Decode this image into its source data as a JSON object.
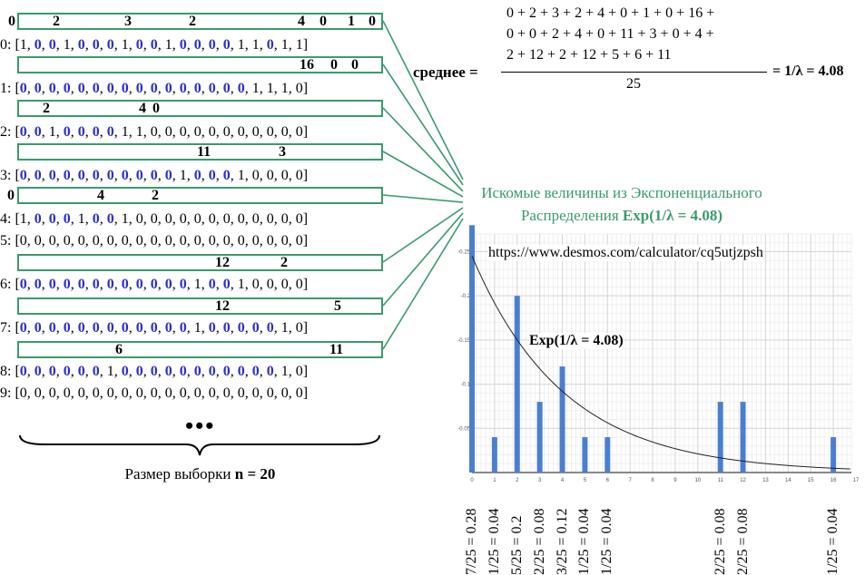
{
  "rows": [
    {
      "label": "0: [",
      "items": [
        [
          "1",
          0
        ],
        [
          "0",
          1
        ],
        [
          "0",
          1
        ],
        [
          "1",
          0
        ],
        [
          "0",
          1
        ],
        [
          "0",
          1
        ],
        [
          "0",
          1
        ],
        [
          "1",
          0
        ],
        [
          "0",
          1
        ],
        [
          "0",
          1
        ],
        [
          "1",
          0
        ],
        [
          "0",
          1
        ],
        [
          "0",
          1
        ],
        [
          "0",
          1
        ],
        [
          "0",
          1
        ],
        [
          "1",
          0
        ],
        [
          "1",
          0
        ],
        [
          "0",
          1
        ],
        [
          "1",
          0
        ],
        [
          "1",
          0
        ]
      ]
    },
    {
      "label": "1: [",
      "items": [
        [
          "0",
          1
        ],
        [
          "0",
          1
        ],
        [
          "0",
          1
        ],
        [
          "0",
          1
        ],
        [
          "0",
          1
        ],
        [
          "0",
          1
        ],
        [
          "0",
          1
        ],
        [
          "0",
          1
        ],
        [
          "0",
          1
        ],
        [
          "0",
          1
        ],
        [
          "0",
          1
        ],
        [
          "0",
          1
        ],
        [
          "0",
          1
        ],
        [
          "0",
          1
        ],
        [
          "0",
          1
        ],
        [
          "0",
          1
        ],
        [
          "1",
          0
        ],
        [
          "1",
          0
        ],
        [
          "1",
          0
        ],
        [
          "0",
          0
        ]
      ]
    },
    {
      "label": "2: [",
      "items": [
        [
          "0",
          1
        ],
        [
          "0",
          1
        ],
        [
          "1",
          0
        ],
        [
          "0",
          1
        ],
        [
          "0",
          1
        ],
        [
          "0",
          1
        ],
        [
          "0",
          1
        ],
        [
          "1",
          0
        ],
        [
          "1",
          0
        ],
        [
          "0",
          0
        ],
        [
          "0",
          0
        ],
        [
          "0",
          0
        ],
        [
          "0",
          0
        ],
        [
          "0",
          0
        ],
        [
          "0",
          0
        ],
        [
          "0",
          0
        ],
        [
          "0",
          0
        ],
        [
          "0",
          0
        ],
        [
          "0",
          0
        ],
        [
          "0",
          0
        ]
      ]
    },
    {
      "label": "3: [",
      "items": [
        [
          "0",
          1
        ],
        [
          "0",
          1
        ],
        [
          "0",
          1
        ],
        [
          "0",
          1
        ],
        [
          "0",
          1
        ],
        [
          "0",
          1
        ],
        [
          "0",
          1
        ],
        [
          "0",
          1
        ],
        [
          "0",
          1
        ],
        [
          "0",
          1
        ],
        [
          "0",
          1
        ],
        [
          "1",
          0
        ],
        [
          "0",
          1
        ],
        [
          "0",
          1
        ],
        [
          "0",
          1
        ],
        [
          "1",
          0
        ],
        [
          "0",
          0
        ],
        [
          "0",
          0
        ],
        [
          "0",
          0
        ],
        [
          "0",
          0
        ]
      ]
    },
    {
      "label": "4: [",
      "items": [
        [
          "1",
          0
        ],
        [
          "0",
          1
        ],
        [
          "0",
          1
        ],
        [
          "0",
          1
        ],
        [
          "1",
          0
        ],
        [
          "0",
          1
        ],
        [
          "0",
          1
        ],
        [
          "1",
          0
        ],
        [
          "0",
          0
        ],
        [
          "0",
          0
        ],
        [
          "0",
          0
        ],
        [
          "0",
          0
        ],
        [
          "0",
          0
        ],
        [
          "0",
          0
        ],
        [
          "0",
          0
        ],
        [
          "0",
          0
        ],
        [
          "0",
          0
        ],
        [
          "0",
          0
        ],
        [
          "0",
          0
        ],
        [
          "0",
          0
        ]
      ]
    },
    {
      "label": "5: [",
      "items": [
        [
          "0",
          0
        ],
        [
          "0",
          0
        ],
        [
          "0",
          0
        ],
        [
          "0",
          0
        ],
        [
          "0",
          0
        ],
        [
          "0",
          0
        ],
        [
          "0",
          0
        ],
        [
          "0",
          0
        ],
        [
          "0",
          0
        ],
        [
          "0",
          0
        ],
        [
          "0",
          0
        ],
        [
          "0",
          0
        ],
        [
          "0",
          0
        ],
        [
          "0",
          0
        ],
        [
          "0",
          0
        ],
        [
          "0",
          0
        ],
        [
          "0",
          0
        ],
        [
          "0",
          0
        ],
        [
          "0",
          0
        ],
        [
          "0",
          0
        ]
      ]
    },
    {
      "label": "6: [",
      "items": [
        [
          "0",
          1
        ],
        [
          "0",
          1
        ],
        [
          "0",
          1
        ],
        [
          "0",
          1
        ],
        [
          "0",
          1
        ],
        [
          "0",
          1
        ],
        [
          "0",
          1
        ],
        [
          "0",
          1
        ],
        [
          "0",
          1
        ],
        [
          "0",
          1
        ],
        [
          "0",
          1
        ],
        [
          "0",
          1
        ],
        [
          "1",
          0
        ],
        [
          "0",
          1
        ],
        [
          "0",
          1
        ],
        [
          "1",
          0
        ],
        [
          "0",
          0
        ],
        [
          "0",
          0
        ],
        [
          "0",
          0
        ],
        [
          "0",
          0
        ]
      ]
    },
    {
      "label": "7: [",
      "items": [
        [
          "0",
          1
        ],
        [
          "0",
          1
        ],
        [
          "0",
          1
        ],
        [
          "0",
          1
        ],
        [
          "0",
          1
        ],
        [
          "0",
          1
        ],
        [
          "0",
          1
        ],
        [
          "0",
          1
        ],
        [
          "0",
          1
        ],
        [
          "0",
          1
        ],
        [
          "0",
          1
        ],
        [
          "0",
          1
        ],
        [
          "1",
          0
        ],
        [
          "0",
          1
        ],
        [
          "0",
          1
        ],
        [
          "0",
          1
        ],
        [
          "0",
          1
        ],
        [
          "0",
          1
        ],
        [
          "1",
          0
        ],
        [
          "0",
          0
        ]
      ]
    },
    {
      "label": "8: [",
      "items": [
        [
          "0",
          1
        ],
        [
          "0",
          1
        ],
        [
          "0",
          1
        ],
        [
          "0",
          1
        ],
        [
          "0",
          1
        ],
        [
          "0",
          1
        ],
        [
          "1",
          0
        ],
        [
          "0",
          1
        ],
        [
          "0",
          1
        ],
        [
          "0",
          1
        ],
        [
          "0",
          1
        ],
        [
          "0",
          1
        ],
        [
          "0",
          1
        ],
        [
          "0",
          1
        ],
        [
          "0",
          1
        ],
        [
          "0",
          1
        ],
        [
          "0",
          1
        ],
        [
          "0",
          1
        ],
        [
          "1",
          0
        ],
        [
          "0",
          0
        ]
      ]
    },
    {
      "label": "9: [",
      "items": [
        [
          "0",
          0
        ],
        [
          "0",
          0
        ],
        [
          "0",
          0
        ],
        [
          "0",
          0
        ],
        [
          "0",
          0
        ],
        [
          "0",
          0
        ],
        [
          "0",
          0
        ],
        [
          "0",
          0
        ],
        [
          "0",
          0
        ],
        [
          "0",
          0
        ],
        [
          "0",
          0
        ],
        [
          "0",
          0
        ],
        [
          "0",
          0
        ],
        [
          "0",
          0
        ],
        [
          "0",
          0
        ],
        [
          "0",
          0
        ],
        [
          "0",
          0
        ],
        [
          "0",
          0
        ],
        [
          "0",
          0
        ],
        [
          "0",
          0
        ]
      ]
    }
  ],
  "gap_boxes": [
    {
      "nums": [
        [
          "0",
          0
        ],
        [
          "2",
          1
        ],
        [
          "3",
          2
        ],
        [
          "2",
          3
        ],
        [
          "4",
          4
        ],
        [
          "0",
          5
        ],
        [
          "1",
          6
        ],
        [
          "0",
          7
        ]
      ]
    },
    {
      "nums": [
        [
          "16",
          8
        ],
        [
          "0",
          9
        ],
        [
          "0",
          10
        ]
      ]
    },
    {
      "nums": [
        [
          "2",
          11
        ],
        [
          "4",
          12
        ],
        [
          "0",
          13
        ]
      ]
    },
    {
      "nums": [
        [
          "11",
          14
        ],
        [
          "3",
          15
        ]
      ]
    },
    {
      "nums": [
        [
          "0",
          16
        ],
        [
          "4",
          17
        ],
        [
          "2",
          18
        ]
      ]
    },
    {
      "nums": [
        [
          "12",
          19
        ],
        [
          "2",
          20
        ]
      ]
    },
    {
      "nums": [
        [
          "12",
          21
        ],
        [
          "5",
          22
        ]
      ]
    },
    {
      "nums": [
        [
          "6",
          23
        ],
        [
          "11",
          24
        ]
      ]
    }
  ],
  "dots": "•••",
  "sample_prefix": "Размер выборки ",
  "sample_bold": "n = 20",
  "formula": {
    "line1": "0 + 2 + 3 + 2 + 4 + 0 + 1 + 0 + 16 +",
    "line2": "0 + 0 + 2 + 4 + 0 + 11 + 3 + 0 + 4 +",
    "line3": "2 + 12 + 2 + 12 + 5 + 6 + 11",
    "denominator": "25",
    "mean_label": "среднее =",
    "result": "= 1/λ = 4.08"
  },
  "green_title": {
    "line1": "Искомые величины из Экспоненциального",
    "line2_prefix": "Распределения ",
    "line2_bold": "Exp(1/λ = 4.08)"
  },
  "url": "https://www.desmos.com/calculator/cq5utjzpsh",
  "curve_label": "Exp(1/λ = 4.08)",
  "colors": {
    "green": "#3b9a6c",
    "blue_bold": "#2a2fc9",
    "bar": "#4a7fd0",
    "grid": "#e2e2e2"
  },
  "chart_data": {
    "type": "bar",
    "x": [
      0,
      1,
      2,
      3,
      4,
      5,
      6,
      11,
      12,
      16
    ],
    "values": [
      0.28,
      0.04,
      0.2,
      0.08,
      0.12,
      0.04,
      0.04,
      0.08,
      0.08,
      0.04
    ],
    "bar_labels": [
      "7/25 = 0.28",
      "1/25 = 0.04",
      "5/25 = 0.2",
      "2/25 = 0.08",
      "3/25 = 0.12",
      "1/25 = 0.04",
      "1/25 = 0.04",
      "2/25 = 0.08",
      "2/25 = 0.08",
      "1/25 = 0.04"
    ],
    "x_ticks": [
      "0",
      "1",
      "2",
      "3",
      "4",
      "5",
      "6",
      "7",
      "8",
      "9",
      "10",
      "11",
      "12",
      "13",
      "14",
      "15",
      "16",
      "17"
    ],
    "y_ticks": [
      "0.05",
      "0.1",
      "0.15",
      "0.2",
      "0.25"
    ],
    "xlim": [
      0,
      16.8
    ],
    "ylim": [
      0,
      0.27
    ],
    "curve": {
      "type": "exponential_pdf",
      "mean": 4.08
    },
    "grid": true
  }
}
